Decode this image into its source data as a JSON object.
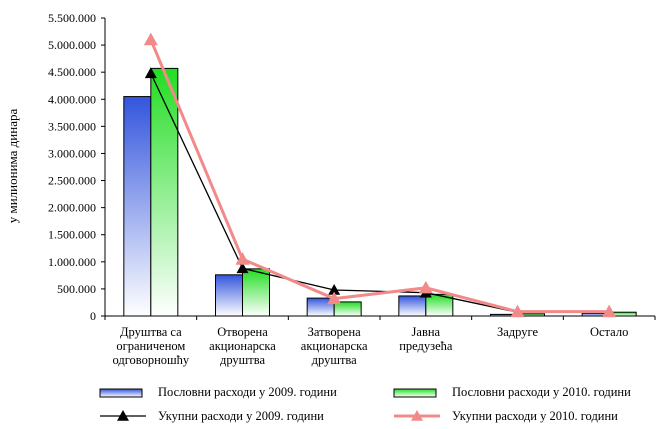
{
  "chart_data": {
    "type": "bar",
    "title": "",
    "xlabel": "",
    "ylabel": "у милионима динара",
    "ylim": [
      0,
      5500000
    ],
    "yticks": [
      0,
      500000,
      1000000,
      1500000,
      2000000,
      2500000,
      3000000,
      3500000,
      4000000,
      4500000,
      5000000,
      5500000
    ],
    "ytick_labels": [
      "0",
      "500.000",
      "1.000.000",
      "1.500.000",
      "2.000.000",
      "2.500.000",
      "3.000.000",
      "3.500.000",
      "4.000.000",
      "4.500.000",
      "5.000.000",
      "5.500.000"
    ],
    "categories": [
      [
        "Друштва са",
        "ограниченом",
        "одговорношћу"
      ],
      [
        "Отворена",
        "акционарска",
        "друштва"
      ],
      [
        "Затворена",
        "акционарска",
        "друштва"
      ],
      [
        "Јавна",
        "предузећа"
      ],
      [
        "Задруге"
      ],
      [
        "Остало"
      ]
    ],
    "series": [
      {
        "name": "Пословни расходи у 2009. години",
        "kind": "bar",
        "color": "#3355dd",
        "values": [
          4050000,
          760000,
          330000,
          370000,
          30000,
          50000
        ]
      },
      {
        "name": "Пословни расходи у 2010. години",
        "kind": "bar",
        "color": "#22dd22",
        "values": [
          4570000,
          870000,
          260000,
          400000,
          40000,
          70000
        ]
      },
      {
        "name": "Укупни расходи у 2009. години",
        "kind": "line",
        "color": "#000000",
        "marker": "triangle",
        "values": [
          4480000,
          880000,
          480000,
          430000,
          70000,
          70000
        ]
      },
      {
        "name": "Укупни расходи у 2010. години",
        "kind": "line",
        "color": "#f28a8a",
        "marker": "triangle",
        "values": [
          5100000,
          1050000,
          320000,
          520000,
          80000,
          80000
        ]
      }
    ],
    "legend_position": "bottom",
    "grid": false
  }
}
